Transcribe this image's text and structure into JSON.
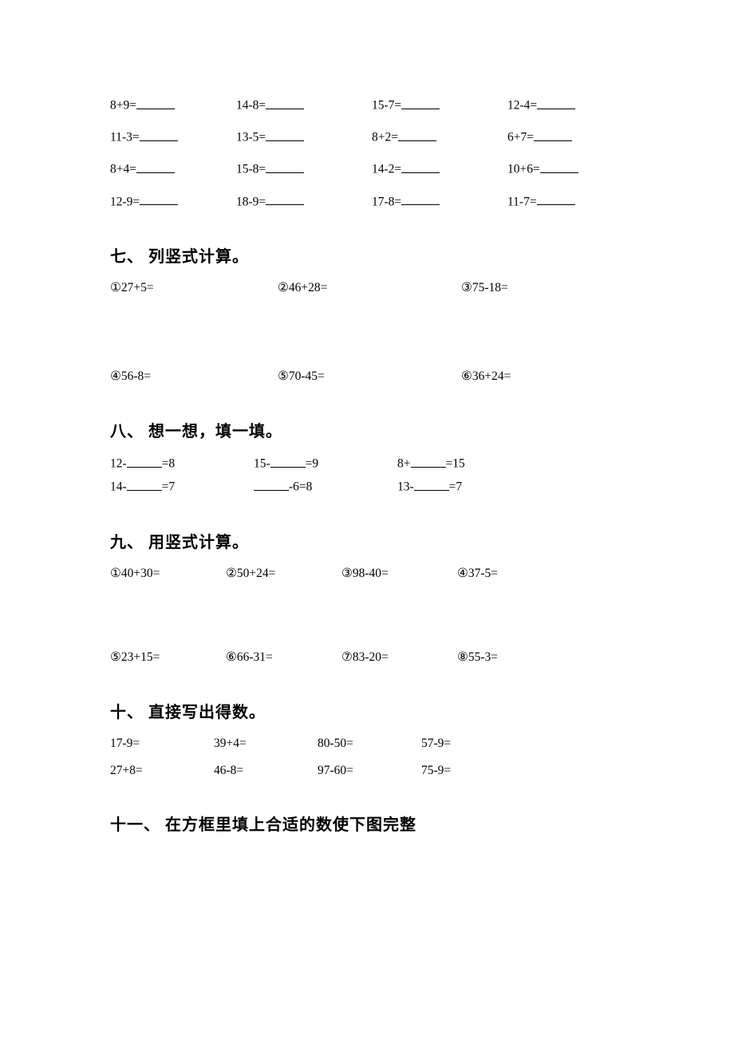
{
  "topGrid": [
    "8+9=",
    "14-8=",
    "15-7=",
    "12-4=",
    "11-3=",
    "13-5=",
    "8+2=",
    "6+7=",
    "8+4=",
    "15-8=",
    "14-2=",
    "10+6=",
    "12-9=",
    "18-9=",
    "17-8=",
    "11-7="
  ],
  "section7": {
    "heading": "七、 列竖式计算。",
    "items": [
      "①27+5=",
      "②46+28=",
      "③75-18=",
      "④56-8=",
      "⑤70-45=",
      "⑥36+24="
    ]
  },
  "section8": {
    "heading": "八、 想一想，填一填。",
    "rows": [
      [
        {
          "type": "blankMid",
          "pre": "12-",
          "post": "=8"
        },
        {
          "type": "blankMid",
          "pre": "15-",
          "post": "=9"
        },
        {
          "type": "blankMid",
          "pre": "8+",
          "post": "=15"
        }
      ],
      [
        {
          "type": "blankMid",
          "pre": "14-",
          "post": "=7"
        },
        {
          "type": "blankFront",
          "post": "-6=8"
        },
        {
          "type": "blankMid",
          "pre": "13-",
          "post": "=7"
        }
      ]
    ]
  },
  "section9": {
    "heading": "九、 用竖式计算。",
    "items": [
      "①40+30=",
      "②50+24=",
      "③98-40=",
      "④37-5=",
      "⑤23+15=",
      "⑥66-31=",
      "⑦83-20=",
      "⑧55-3="
    ]
  },
  "section10": {
    "heading": "十、 直接写出得数。",
    "items": [
      "17-9=",
      "39+4=",
      "80-50=",
      "57-9=",
      "27+8=",
      "46-8=",
      "97-60=",
      "75-9="
    ]
  },
  "section11": {
    "heading": "十一、 在方框里填上合适的数使下图完整"
  }
}
